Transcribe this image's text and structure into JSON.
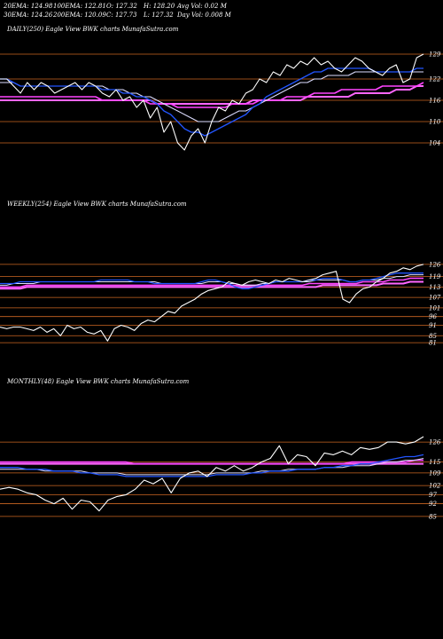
{
  "header": {
    "row1": [
      "20EMA: 124.98",
      "100EMA: 122.81",
      "O: 127.32",
      "H: 128.20",
      "Avg Vol: 0.02  M"
    ],
    "row2": [
      "30EMA: 124.26",
      "200EMA: 120.09",
      "C: 127.73",
      "L: 127.32",
      "Day Vol: 0.008  M"
    ]
  },
  "colors": {
    "price": "#ffffff",
    "ema20": "#2255ff",
    "ema30": "#ddddff",
    "ema100": "#ff44ff",
    "ema200": "#ff66ff",
    "ma_brown": "#aa6633",
    "level": "#cc6622"
  },
  "chart_data": [
    {
      "type": "line",
      "title": "DAILY(250) Eagle  View  BWK charts MunafaSutra.com",
      "ticks": [
        "129",
        "122",
        "116",
        "110",
        "104"
      ],
      "ylim": [
        98,
        133
      ],
      "levels": [
        129,
        122,
        116,
        110,
        104
      ],
      "series": [
        {
          "key": "price",
          "values": [
            122,
            122,
            120,
            118,
            121,
            119,
            121,
            120,
            118,
            119,
            120,
            121,
            119,
            121,
            120,
            118,
            117,
            119,
            116,
            117,
            114,
            116,
            111,
            114,
            107,
            110,
            104,
            102,
            106,
            108,
            104,
            110,
            114,
            113,
            116,
            115,
            118,
            119,
            122,
            121,
            124,
            123,
            126,
            125,
            127,
            126,
            128,
            126,
            127,
            125,
            124,
            126,
            128,
            127,
            125,
            124,
            123,
            125,
            126,
            121,
            122,
            128,
            129
          ]
        },
        {
          "key": "ema20",
          "values": [
            122,
            122,
            121,
            120,
            120,
            120,
            120,
            120,
            120,
            120,
            120,
            120,
            120,
            120,
            120,
            119,
            119,
            119,
            118,
            118,
            117,
            117,
            116,
            115,
            113,
            112,
            110,
            108,
            107,
            107,
            106,
            107,
            108,
            109,
            110,
            111,
            112,
            114,
            115,
            117,
            118,
            119,
            120,
            121,
            122,
            123,
            124,
            124,
            125,
            125,
            125,
            125,
            125,
            125,
            125,
            124,
            124,
            124,
            124,
            124,
            124,
            125,
            125
          ]
        },
        {
          "key": "ema30",
          "values": [
            121,
            121,
            121,
            120,
            120,
            120,
            120,
            120,
            120,
            120,
            120,
            120,
            120,
            120,
            120,
            120,
            119,
            119,
            119,
            118,
            118,
            117,
            117,
            116,
            115,
            114,
            113,
            112,
            111,
            110,
            110,
            110,
            110,
            111,
            112,
            113,
            113,
            114,
            115,
            116,
            117,
            118,
            119,
            120,
            121,
            121,
            122,
            122,
            123,
            123,
            123,
            123,
            124,
            124,
            124,
            124,
            124,
            124,
            124,
            124,
            124,
            124,
            124
          ]
        },
        {
          "key": "ema100",
          "values": [
            117,
            117,
            117,
            117,
            117,
            117,
            117,
            117,
            117,
            117,
            117,
            117,
            117,
            117,
            117,
            116,
            116,
            116,
            116,
            116,
            116,
            116,
            115,
            115,
            115,
            115,
            114,
            114,
            114,
            114,
            114,
            114,
            114,
            114,
            115,
            115,
            115,
            115,
            116,
            116,
            116,
            116,
            117,
            117,
            117,
            117,
            118,
            118,
            118,
            118,
            119,
            119,
            119,
            119,
            119,
            119,
            120,
            120,
            120,
            120,
            120,
            120,
            121
          ]
        },
        {
          "key": "ema200",
          "values": [
            116,
            116,
            116,
            116,
            116,
            116,
            116,
            116,
            116,
            116,
            116,
            116,
            116,
            116,
            116,
            116,
            116,
            116,
            116,
            116,
            116,
            116,
            116,
            115,
            115,
            115,
            115,
            115,
            115,
            115,
            115,
            115,
            115,
            115,
            115,
            115,
            115,
            116,
            116,
            116,
            116,
            116,
            116,
            116,
            116,
            117,
            117,
            117,
            117,
            117,
            117,
            117,
            118,
            118,
            118,
            118,
            118,
            118,
            119,
            119,
            119,
            120,
            120
          ]
        }
      ]
    },
    {
      "type": "line",
      "title": "WEEKLY(254) Eagle  View  BWK charts MunafaSutra.com",
      "ticks": [
        "126",
        "119",
        "113",
        "107",
        "101",
        "96",
        "91",
        "85",
        "81"
      ],
      "ylim": [
        78,
        129
      ],
      "levels": [
        126,
        119,
        113,
        107,
        101,
        96,
        91,
        85,
        81
      ],
      "series": [
        {
          "key": "price",
          "values": [
            90,
            89,
            90,
            90,
            89,
            88,
            90,
            87,
            89,
            85,
            91,
            89,
            90,
            87,
            86,
            88,
            82,
            89,
            91,
            90,
            88,
            92,
            94,
            93,
            96,
            99,
            98,
            102,
            104,
            106,
            109,
            111,
            112,
            113,
            116,
            115,
            114,
            116,
            117,
            116,
            115,
            117,
            116,
            118,
            117,
            116,
            117,
            118,
            120,
            121,
            122,
            106,
            104,
            109,
            112,
            113,
            116,
            118,
            121,
            122,
            124,
            123,
            125,
            126
          ]
        },
        {
          "key": "ema20",
          "values": [
            115,
            115,
            115,
            116,
            116,
            116,
            116,
            116,
            116,
            116,
            116,
            116,
            116,
            116,
            116,
            117,
            117,
            117,
            117,
            117,
            116,
            116,
            116,
            115,
            115,
            115,
            115,
            115,
            115,
            115,
            116,
            117,
            117,
            116,
            115,
            113,
            112,
            112,
            113,
            114,
            115,
            116,
            116,
            116,
            116,
            116,
            117,
            117,
            118,
            118,
            118,
            117,
            116,
            116,
            117,
            117,
            118,
            119,
            120,
            121,
            121,
            121,
            121,
            121
          ]
        },
        {
          "key": "ema30",
          "values": [
            114,
            114,
            115,
            115,
            115,
            115,
            116,
            116,
            116,
            116,
            116,
            116,
            116,
            116,
            116,
            116,
            116,
            116,
            116,
            116,
            116,
            116,
            116,
            116,
            115,
            115,
            115,
            115,
            115,
            115,
            115,
            116,
            116,
            116,
            115,
            115,
            114,
            114,
            114,
            115,
            115,
            116,
            116,
            116,
            116,
            116,
            116,
            117,
            117,
            117,
            117,
            117,
            116,
            116,
            117,
            117,
            117,
            118,
            118,
            119,
            119,
            120,
            120,
            120
          ]
        },
        {
          "key": "ema100",
          "values": [
            113,
            113,
            113,
            113,
            114,
            114,
            114,
            114,
            114,
            114,
            114,
            114,
            114,
            114,
            114,
            114,
            114,
            114,
            114,
            114,
            114,
            114,
            114,
            114,
            114,
            114,
            114,
            114,
            114,
            114,
            114,
            114,
            114,
            114,
            114,
            114,
            114,
            114,
            114,
            114,
            114,
            114,
            114,
            114,
            114,
            114,
            115,
            115,
            115,
            115,
            115,
            115,
            115,
            115,
            116,
            116,
            116,
            116,
            117,
            117,
            117,
            118,
            118,
            118
          ]
        },
        {
          "key": "ema200",
          "values": [
            112,
            112,
            112,
            112,
            113,
            113,
            113,
            113,
            113,
            113,
            113,
            113,
            113,
            113,
            113,
            113,
            113,
            113,
            113,
            113,
            113,
            113,
            113,
            113,
            113,
            113,
            113,
            113,
            113,
            113,
            113,
            113,
            113,
            113,
            113,
            113,
            113,
            113,
            113,
            113,
            113,
            113,
            113,
            113,
            113,
            113,
            113,
            113,
            114,
            114,
            114,
            114,
            114,
            114,
            114,
            114,
            114,
            115,
            115,
            115,
            115,
            116,
            116,
            116
          ]
        }
      ]
    },
    {
      "type": "line",
      "title": "MONTHLY(48) Eagle  View  BWK charts MunafaSutra.com",
      "ticks": [
        "126",
        "115",
        "109",
        "102",
        "97",
        "92",
        "85"
      ],
      "ylim": [
        82,
        129
      ],
      "levels": [
        126,
        115,
        109,
        102,
        97,
        92,
        85
      ],
      "series": [
        {
          "key": "price",
          "values": [
            100,
            101,
            100,
            98,
            97,
            94,
            92,
            95,
            89,
            94,
            93,
            88,
            94,
            96,
            97,
            100,
            105,
            103,
            106,
            98,
            106,
            109,
            110,
            107,
            112,
            110,
            113,
            110,
            112,
            115,
            117,
            124,
            114,
            119,
            118,
            113,
            120,
            119,
            121,
            119,
            123,
            122,
            123,
            126,
            126,
            125,
            126,
            129
          ]
        },
        {
          "key": "ema20",
          "values": [
            112,
            112,
            112,
            111,
            111,
            111,
            110,
            110,
            110,
            109,
            109,
            108,
            108,
            108,
            107,
            107,
            107,
            107,
            107,
            107,
            107,
            107,
            107,
            107,
            108,
            108,
            108,
            108,
            109,
            109,
            110,
            110,
            110,
            111,
            111,
            111,
            112,
            112,
            113,
            113,
            114,
            114,
            115,
            116,
            117,
            118,
            118,
            119
          ]
        },
        {
          "key": "ema30",
          "values": [
            111,
            111,
            111,
            111,
            111,
            110,
            110,
            110,
            110,
            110,
            109,
            109,
            109,
            109,
            108,
            108,
            108,
            108,
            108,
            108,
            108,
            108,
            108,
            108,
            109,
            109,
            109,
            109,
            109,
            110,
            110,
            110,
            111,
            111,
            111,
            111,
            112,
            112,
            112,
            113,
            113,
            113,
            114,
            115,
            115,
            116,
            116,
            117
          ]
        },
        {
          "key": "ema100",
          "values": [
            115,
            115,
            115,
            115,
            115,
            115,
            115,
            115,
            115,
            115,
            115,
            115,
            115,
            115,
            115,
            114,
            114,
            114,
            114,
            114,
            114,
            114,
            114,
            114,
            114,
            114,
            114,
            114,
            114,
            114,
            114,
            114,
            114,
            114,
            114,
            114,
            114,
            114,
            114,
            115,
            115,
            115,
            115,
            115,
            115,
            115,
            116,
            116
          ]
        },
        {
          "key": "ema200",
          "values": [
            114,
            114,
            114,
            114,
            114,
            114,
            114,
            114,
            114,
            114,
            114,
            114,
            114,
            114,
            114,
            114,
            114,
            114,
            114,
            114,
            114,
            114,
            114,
            114,
            114,
            114,
            114,
            114,
            114,
            114,
            114,
            114,
            114,
            114,
            114,
            114,
            114,
            114,
            114,
            114,
            114,
            114,
            114,
            114,
            114,
            114,
            114,
            114
          ]
        }
      ]
    }
  ]
}
